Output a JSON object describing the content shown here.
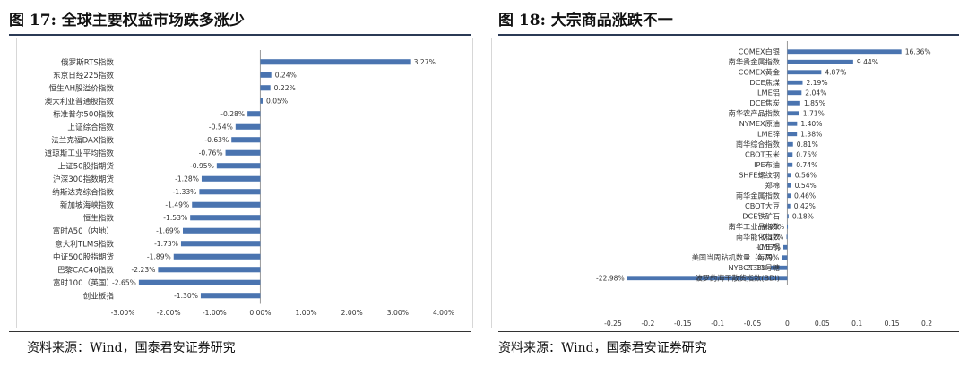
{
  "left": {
    "figure_title": "图 17:  全球主要权益市场跌多涨少",
    "source": "资料来源：Wind，国泰君安证券研究"
  },
  "right": {
    "figure_title": "图 18:  大宗商品涨跌不一",
    "source": "资料来源：Wind，国泰君安证券研究"
  },
  "colors": {
    "bar": "#4a74b0",
    "axis": "#999999",
    "frame": "#d7d7d7",
    "rule": "#2b3a55"
  },
  "chart_data": [
    {
      "type": "bar",
      "orientation": "horizontal",
      "title": "",
      "xlabel": "",
      "ylabel": "",
      "xlim": [
        -0.03,
        0.04
      ],
      "x_ticks": [
        "-3.00%",
        "-2.00%",
        "-1.00%",
        "0.00%",
        "1.00%",
        "2.00%",
        "3.00%",
        "4.00%"
      ],
      "x_tick_values": [
        -0.03,
        -0.02,
        -0.01,
        0,
        0.01,
        0.02,
        0.03,
        0.04
      ],
      "grid": false,
      "categories": [
        "俄罗斯RTS指数",
        "东京日经225指数",
        "恒生AH股溢价指数",
        "澳大利亚普通股指数",
        "标准普尔500指数",
        "上证综合指数",
        "法兰克福DAX指数",
        "道琼斯工业平均指数",
        "上证50股指期货",
        "沪深300指数期货",
        "纳斯达克综合指数",
        "新加坡海峡指数",
        "恒生指数",
        "富时A50（内地）",
        "意大利TLMS指数",
        "中证500股指期货",
        "巴黎CAC40指数",
        "富时100（英国）",
        "创业板指"
      ],
      "values": [
        0.0327,
        0.0024,
        0.0022,
        0.0005,
        -0.0028,
        -0.0054,
        -0.0063,
        -0.0076,
        -0.0095,
        -0.0128,
        -0.0133,
        -0.0149,
        -0.0153,
        -0.0169,
        -0.0173,
        -0.0189,
        -0.0223,
        -0.0265,
        -0.013
      ],
      "labels": [
        "3.27%",
        "0.24%",
        "0.22%",
        "0.05%",
        "-0.28%",
        "-0.54%",
        "-0.63%",
        "-0.76%",
        "-0.95%",
        "-1.28%",
        "-1.33%",
        "-1.49%",
        "-1.53%",
        "-1.69%",
        "-1.73%",
        "-1.89%",
        "-2.23%",
        "-2.65%",
        "-1.30%"
      ]
    },
    {
      "type": "bar",
      "orientation": "horizontal",
      "title": "",
      "xlabel": "",
      "ylabel": "",
      "xlim": [
        -0.25,
        0.2
      ],
      "x_ticks": [
        "-0.25",
        "-0.2",
        "-0.15",
        "-0.1",
        "-0.05",
        "0",
        "0.05",
        "0.1",
        "0.15",
        "0.2"
      ],
      "x_tick_values": [
        -0.25,
        -0.2,
        -0.15,
        -0.1,
        -0.05,
        0,
        0.05,
        0.1,
        0.15,
        0.2
      ],
      "grid": false,
      "categories": [
        "COMEX白银",
        "南华贵金属指数",
        "COMEX黄金",
        "DCE焦煤",
        "LME铝",
        "DCE焦炭",
        "南华农产品指数",
        "NYMEX原油",
        "LME锌",
        "南华综合指数",
        "CBOT玉米",
        "IPE布油",
        "SHFE螺纹钢",
        "郑棉",
        "南华金属指数",
        "CBOT大豆",
        "DCE铁矿石",
        "南华工业品指数",
        "南华能化指数",
        "LME铜",
        "美国当周钻机数量（每周）",
        "NYBOT 11号糖",
        "波罗的海干散货指数(BDI)"
      ],
      "values": [
        0.1636,
        0.0944,
        0.0487,
        0.0219,
        0.0204,
        0.0185,
        0.0171,
        0.014,
        0.0138,
        0.0081,
        0.0075,
        0.0074,
        0.0056,
        0.0054,
        0.0046,
        0.0042,
        0.0018,
        -0.0005,
        -0.0012,
        -0.0057,
        -0.0079,
        -0.0238,
        -0.2298
      ],
      "labels": [
        "16.36%",
        "9.44%",
        "4.87%",
        "2.19%",
        "2.04%",
        "1.85%",
        "1.71%",
        "1.40%",
        "1.38%",
        "0.81%",
        "0.75%",
        "0.74%",
        "0.56%",
        "0.54%",
        "0.46%",
        "0.42%",
        "0.18%",
        "-0.05%",
        "-0.12%",
        "-0.57%",
        "-0.79%",
        "-2.38%",
        "-22.98%"
      ]
    }
  ]
}
